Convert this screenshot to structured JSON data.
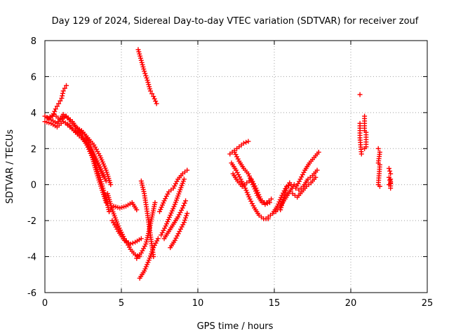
{
  "chart_data": {
    "type": "scatter",
    "title": "Day 129 of 2024, Sidereal Day-to-day VTEC variation (SDTVAR) for receiver zouf",
    "xlabel": "GPS time / hours",
    "ylabel": "SDTVAR / TECUs",
    "xlim": [
      0,
      25
    ],
    "ylim": [
      -6,
      8
    ],
    "xticks": [
      0,
      5,
      10,
      15,
      20,
      25
    ],
    "yticks": [
      -6,
      -4,
      -2,
      0,
      2,
      4,
      6,
      8
    ],
    "grid": true,
    "marker": "plus",
    "color": "#ff0000",
    "series": [
      {
        "name": "t0",
        "x": [
          0.0,
          0.4,
          0.8,
          1.2,
          1.6,
          2.0,
          2.4,
          2.8,
          3.2,
          3.6,
          4.0,
          4.3
        ],
        "y": [
          3.8,
          3.6,
          3.4,
          3.9,
          3.6,
          3.2,
          3.0,
          2.6,
          2.2,
          1.6,
          0.8,
          0.0
        ]
      },
      {
        "name": "t1",
        "x": [
          0.0,
          0.4,
          0.8,
          1.2,
          1.6,
          2.0,
          2.5,
          3.0,
          3.5,
          4.0
        ],
        "y": [
          3.5,
          3.4,
          3.2,
          3.5,
          3.3,
          2.9,
          2.5,
          1.9,
          1.1,
          0.2
        ]
      },
      {
        "name": "t2",
        "x": [
          0.2,
          0.6,
          1.0,
          1.4,
          1.8,
          2.2,
          2.6,
          3.0,
          3.4,
          3.8
        ],
        "y": [
          3.7,
          3.9,
          3.6,
          3.8,
          3.5,
          3.0,
          2.8,
          2.1,
          1.3,
          0.5
        ]
      },
      {
        "name": "t3",
        "x": [
          0.5,
          0.7,
          0.9,
          1.1,
          1.2,
          1.4
        ],
        "y": [
          3.8,
          4.2,
          4.5,
          4.8,
          5.2,
          5.5
        ]
      },
      {
        "name": "t4",
        "x": [
          1.5,
          1.9,
          2.3,
          2.7,
          3.1,
          3.4,
          3.7,
          4.0
        ],
        "y": [
          3.3,
          3.0,
          2.8,
          2.3,
          1.5,
          0.6,
          -0.2,
          -1.0
        ]
      },
      {
        "name": "t5",
        "x": [
          2.0,
          2.4,
          2.8,
          3.2,
          3.6,
          4.0,
          4.2
        ],
        "y": [
          3.0,
          2.7,
          2.2,
          1.4,
          0.4,
          -0.8,
          -1.5
        ]
      },
      {
        "name": "t6",
        "x": [
          4.2,
          4.5,
          4.9,
          5.3,
          5.7,
          6.0
        ],
        "y": [
          -1.5,
          -1.2,
          -1.3,
          -1.2,
          -1.0,
          -1.4
        ]
      },
      {
        "name": "t7",
        "x": [
          4.1,
          4.4,
          4.8,
          5.2,
          5.6,
          5.9,
          6.2
        ],
        "y": [
          -0.5,
          -1.4,
          -2.3,
          -3.0,
          -3.6,
          -3.9,
          -4.0
        ]
      },
      {
        "name": "t8",
        "x": [
          4.4,
          4.8,
          5.2,
          5.6,
          5.9,
          6.3
        ],
        "y": [
          -2.0,
          -2.6,
          -3.1,
          -3.3,
          -3.2,
          -3.0
        ]
      },
      {
        "name": "t9",
        "x": [
          6.0,
          6.3,
          6.6,
          6.8,
          7.0,
          7.2
        ],
        "y": [
          -4.1,
          -3.8,
          -3.3,
          -2.6,
          -1.8,
          -1.0
        ]
      },
      {
        "name": "t10",
        "x": [
          6.3,
          6.5,
          6.7,
          6.9,
          7.1
        ],
        "y": [
          0.2,
          -0.5,
          -1.6,
          -2.8,
          -4.0
        ]
      },
      {
        "name": "t11",
        "x": [
          6.2,
          6.5,
          6.8,
          7.1,
          7.4
        ],
        "y": [
          -5.2,
          -4.8,
          -4.2,
          -3.5,
          -3.0
        ]
      },
      {
        "name": "t12",
        "x": [
          6.1,
          6.3,
          6.5,
          6.7,
          6.9,
          7.1,
          7.3
        ],
        "y": [
          7.5,
          6.9,
          6.3,
          5.8,
          5.2,
          4.9,
          4.5
        ]
      },
      {
        "name": "t13",
        "x": [
          7.5,
          7.8,
          8.1,
          8.4,
          8.7,
          9.0,
          9.3
        ],
        "y": [
          -1.5,
          -0.9,
          -0.4,
          -0.2,
          0.3,
          0.6,
          0.8
        ]
      },
      {
        "name": "t14",
        "x": [
          7.6,
          7.9,
          8.2,
          8.5,
          8.8,
          9.1
        ],
        "y": [
          -2.8,
          -2.3,
          -1.7,
          -1.1,
          -0.4,
          0.3
        ]
      },
      {
        "name": "t15",
        "x": [
          7.8,
          8.1,
          8.4,
          8.7,
          9.0,
          9.2
        ],
        "y": [
          -3.0,
          -2.6,
          -2.2,
          -1.8,
          -1.3,
          -0.9
        ]
      },
      {
        "name": "t16",
        "x": [
          8.2,
          8.5,
          8.8,
          9.1,
          9.3
        ],
        "y": [
          -3.5,
          -3.1,
          -2.6,
          -2.1,
          -1.6
        ]
      },
      {
        "name": "t17",
        "x": [
          12.1,
          12.4,
          12.7,
          13.0,
          13.3
        ],
        "y": [
          1.7,
          1.9,
          2.1,
          2.3,
          2.4
        ]
      },
      {
        "name": "t18",
        "x": [
          12.2,
          12.5,
          12.8,
          13.1,
          13.4,
          13.7,
          14.0,
          14.3,
          14.6
        ],
        "y": [
          1.2,
          0.8,
          0.3,
          -0.2,
          -0.8,
          -1.3,
          -1.7,
          -1.9,
          -1.9
        ]
      },
      {
        "name": "t19",
        "x": [
          12.3,
          12.6,
          12.9,
          13.2,
          13.5,
          13.8,
          14.1,
          14.4,
          14.7
        ],
        "y": [
          0.6,
          0.2,
          -0.1,
          0.1,
          0.3,
          -0.2,
          -0.8,
          -1.1,
          -1.0
        ]
      },
      {
        "name": "t20",
        "x": [
          12.4,
          12.7,
          13.0,
          13.3,
          13.6,
          13.9,
          14.2,
          14.5,
          14.8
        ],
        "y": [
          1.8,
          1.3,
          0.9,
          0.6,
          0.0,
          -0.6,
          -1.0,
          -1.0,
          -0.8
        ]
      },
      {
        "name": "t21",
        "x": [
          14.6,
          14.9,
          15.2,
          15.5,
          15.8,
          16.1
        ],
        "y": [
          -1.8,
          -1.6,
          -1.2,
          -0.6,
          -0.1,
          0.0
        ]
      },
      {
        "name": "t22",
        "x": [
          15.1,
          15.4,
          15.7,
          16.0,
          16.3
        ],
        "y": [
          -1.5,
          -1.2,
          -0.8,
          -0.4,
          0.0
        ]
      },
      {
        "name": "t23",
        "x": [
          15.4,
          15.6,
          15.8,
          16.0
        ],
        "y": [
          -1.4,
          -0.8,
          -0.2,
          0.1
        ]
      },
      {
        "name": "t24",
        "x": [
          16.2,
          16.5,
          16.8,
          17.1,
          17.4,
          17.7
        ],
        "y": [
          -0.5,
          -0.7,
          -0.4,
          -0.1,
          0.1,
          0.4
        ]
      },
      {
        "name": "t25",
        "x": [
          16.4,
          16.7,
          17.0,
          17.3,
          17.6,
          17.9
        ],
        "y": [
          -0.2,
          0.3,
          0.8,
          1.2,
          1.5,
          1.8
        ]
      },
      {
        "name": "t26",
        "x": [
          16.6,
          16.9,
          17.2,
          17.5,
          17.8
        ],
        "y": [
          -0.3,
          -0.1,
          0.3,
          0.5,
          0.8
        ]
      },
      {
        "name": "t27",
        "x": [
          20.6,
          20.6,
          20.6,
          20.7
        ],
        "y": [
          5.0,
          3.4,
          2.6,
          1.7
        ]
      },
      {
        "name": "t28",
        "x": [
          20.9,
          20.9,
          21.0,
          21.0,
          20.9
        ],
        "y": [
          3.8,
          3.0,
          2.9,
          2.1,
          2.0
        ]
      },
      {
        "name": "t29",
        "x": [
          21.8,
          21.9,
          21.8,
          21.9,
          21.8,
          21.9
        ],
        "y": [
          2.0,
          1.8,
          1.2,
          1.1,
          0.0,
          -0.1
        ]
      },
      {
        "name": "t30",
        "x": [
          22.5,
          22.6,
          22.5,
          22.6,
          22.5,
          22.6,
          22.6
        ],
        "y": [
          0.9,
          0.6,
          0.4,
          0.1,
          0.0,
          -0.2,
          0.3
        ]
      }
    ]
  }
}
